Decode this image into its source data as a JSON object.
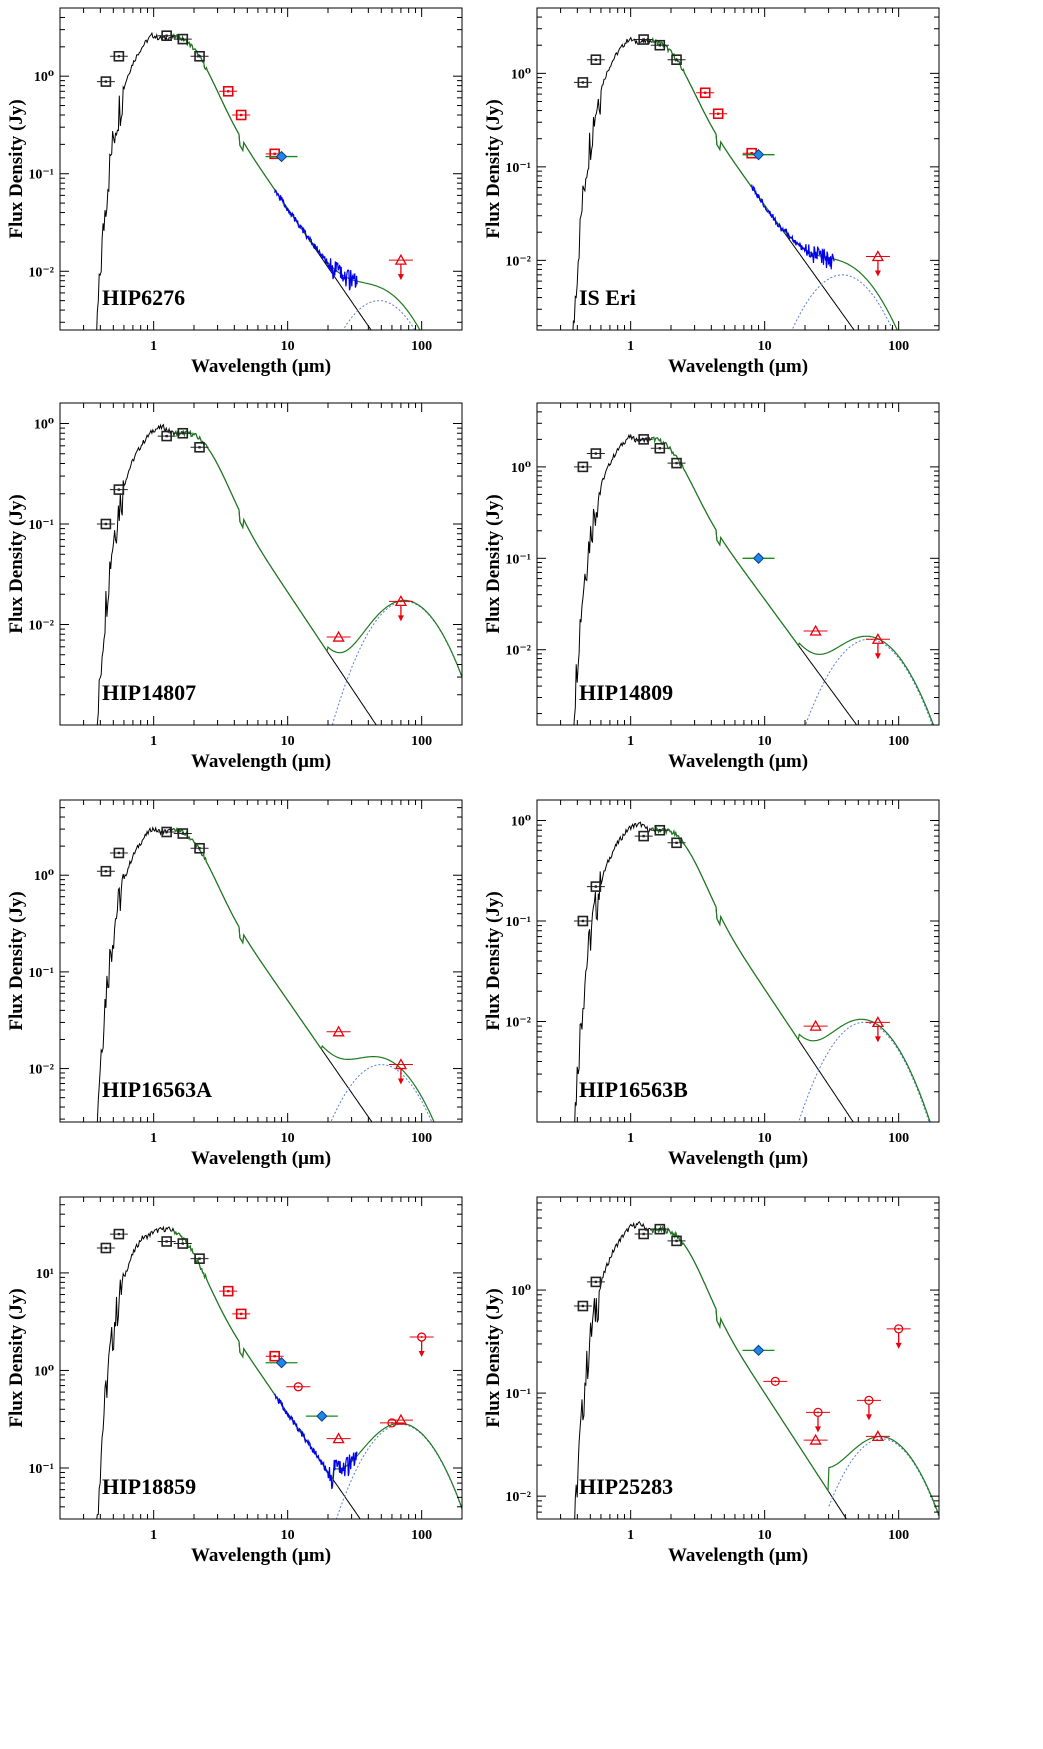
{
  "figure": {
    "panel_count": 8,
    "colors": {
      "photosphere": "#000000",
      "total_model": "#1f7a1f",
      "disk_model": "#5b7fd6",
      "irs_spectrum": "#0000ee",
      "optical_nir_photometry": "#222222",
      "irac_mips_photometry": "#e8000b",
      "akari_wise_photometry": "#1a8a1a",
      "diamond_marker": "#1e88e5"
    }
  },
  "chart_data": [
    {
      "panel": "HIP6276",
      "type": "scatter",
      "xlabel": "Wavelength (μm)",
      "ylabel": "Flux Density (Jy)",
      "xscale": "log",
      "yscale": "log",
      "xlim": [
        0.2,
        200
      ],
      "ylim": [
        0.0025,
        5
      ],
      "xticks": [
        "1",
        "10",
        "100"
      ],
      "yticks": [
        "10⁰",
        "10⁻¹",
        "10⁻²"
      ],
      "label_position": "bottom-left",
      "photosphere_peak": {
        "x": 1.3,
        "y": 2.6
      },
      "disk": {
        "peak_x": 48,
        "peak_y": 0.005,
        "cut_x": 12
      },
      "irs_spectrum": {
        "from": 8,
        "to": 33
      },
      "photometry": [
        {
          "x": 0.44,
          "y": 0.88,
          "style": "square"
        },
        {
          "x": 0.55,
          "y": 1.6,
          "style": "square"
        },
        {
          "x": 1.25,
          "y": 2.6,
          "style": "square"
        },
        {
          "x": 1.65,
          "y": 2.4,
          "style": "square"
        },
        {
          "x": 2.2,
          "y": 1.6,
          "style": "square"
        },
        {
          "x": 3.6,
          "y": 0.7,
          "style": "square-red"
        },
        {
          "x": 4.5,
          "y": 0.4,
          "style": "square-red"
        },
        {
          "x": 8.0,
          "y": 0.16,
          "style": "square-red"
        },
        {
          "x": 9.0,
          "y": 0.15,
          "style": "diamond"
        },
        {
          "x": 70,
          "y": 0.013,
          "style": "triangle-upper"
        }
      ]
    },
    {
      "panel": "IS Eri",
      "type": "scatter",
      "xlabel": "Wavelength (μm)",
      "ylabel": "Flux Density (Jy)",
      "xscale": "log",
      "yscale": "log",
      "xlim": [
        0.2,
        200
      ],
      "ylim": [
        0.0018,
        5
      ],
      "xticks": [
        "1",
        "10",
        "100"
      ],
      "yticks": [
        "10⁰",
        "10⁻¹",
        "10⁻²"
      ],
      "label_position": "bottom-left",
      "photosphere_peak": {
        "x": 1.3,
        "y": 2.3
      },
      "disk": {
        "peak_x": 38,
        "peak_y": 0.007,
        "cut_x": 14
      },
      "irs_spectrum": {
        "from": 8,
        "to": 33
      },
      "photometry": [
        {
          "x": 0.44,
          "y": 0.8,
          "style": "square"
        },
        {
          "x": 0.55,
          "y": 1.4,
          "style": "square"
        },
        {
          "x": 1.25,
          "y": 2.3,
          "style": "square"
        },
        {
          "x": 1.65,
          "y": 2.0,
          "style": "square"
        },
        {
          "x": 2.2,
          "y": 1.4,
          "style": "square"
        },
        {
          "x": 3.6,
          "y": 0.62,
          "style": "square-red"
        },
        {
          "x": 4.5,
          "y": 0.37,
          "style": "square-red"
        },
        {
          "x": 8.0,
          "y": 0.14,
          "style": "square-red"
        },
        {
          "x": 9.0,
          "y": 0.135,
          "style": "diamond"
        },
        {
          "x": 70,
          "y": 0.011,
          "style": "triangle-upper"
        }
      ]
    },
    {
      "panel": "HIP14807",
      "type": "scatter",
      "xlabel": "Wavelength (μm)",
      "ylabel": "Flux Density (Jy)",
      "xscale": "log",
      "yscale": "log",
      "xlim": [
        0.2,
        200
      ],
      "ylim": [
        0.001,
        1.6
      ],
      "xticks": [
        "1",
        "10",
        "100"
      ],
      "yticks": [
        "10⁰",
        "10⁻¹",
        "10⁻²"
      ],
      "label_position": "bottom-left",
      "photosphere_peak": {
        "x": 1.6,
        "y": 0.82
      },
      "disk": {
        "peak_x": 75,
        "peak_y": 0.017,
        "cut_x": 20
      },
      "irs_spectrum": null,
      "photometry": [
        {
          "x": 0.44,
          "y": 0.1,
          "style": "square"
        },
        {
          "x": 0.55,
          "y": 0.22,
          "style": "square"
        },
        {
          "x": 1.25,
          "y": 0.75,
          "style": "square"
        },
        {
          "x": 1.65,
          "y": 0.8,
          "style": "square"
        },
        {
          "x": 2.2,
          "y": 0.58,
          "style": "square"
        },
        {
          "x": 24,
          "y": 0.0075,
          "style": "triangle"
        },
        {
          "x": 70,
          "y": 0.017,
          "style": "triangle-upper"
        }
      ]
    },
    {
      "panel": "HIP14809",
      "type": "scatter",
      "xlabel": "Wavelength (μm)",
      "ylabel": "Flux Density (Jy)",
      "xscale": "log",
      "yscale": "log",
      "xlim": [
        0.2,
        200
      ],
      "ylim": [
        0.0015,
        5
      ],
      "xticks": [
        "1",
        "10",
        "100"
      ],
      "yticks": [
        "10⁰",
        "10⁻¹",
        "10⁻²"
      ],
      "label_position": "bottom-left",
      "photosphere_peak": {
        "x": 1.3,
        "y": 2.1
      },
      "disk": {
        "peak_x": 60,
        "peak_y": 0.013,
        "cut_x": 18
      },
      "irs_spectrum": null,
      "photometry": [
        {
          "x": 0.44,
          "y": 1.0,
          "style": "square"
        },
        {
          "x": 0.55,
          "y": 1.4,
          "style": "square"
        },
        {
          "x": 1.25,
          "y": 2.0,
          "style": "square"
        },
        {
          "x": 1.65,
          "y": 1.6,
          "style": "square"
        },
        {
          "x": 2.2,
          "y": 1.1,
          "style": "square"
        },
        {
          "x": 9.0,
          "y": 0.1,
          "style": "diamond"
        },
        {
          "x": 24,
          "y": 0.016,
          "style": "triangle"
        },
        {
          "x": 70,
          "y": 0.013,
          "style": "triangle-upper"
        }
      ]
    },
    {
      "panel": "HIP16563A",
      "type": "scatter",
      "xlabel": "Wavelength (μm)",
      "ylabel": "Flux Density (Jy)",
      "xscale": "log",
      "yscale": "log",
      "xlim": [
        0.2,
        200
      ],
      "ylim": [
        0.0028,
        6
      ],
      "xticks": [
        "1",
        "10",
        "100"
      ],
      "yticks": [
        "10⁰",
        "10⁻¹",
        "10⁻²"
      ],
      "label_position": "bottom-left",
      "photosphere_peak": {
        "x": 1.3,
        "y": 3.0
      },
      "disk": {
        "peak_x": 50,
        "peak_y": 0.011,
        "cut_x": 18
      },
      "irs_spectrum": null,
      "photometry": [
        {
          "x": 0.44,
          "y": 1.1,
          "style": "square"
        },
        {
          "x": 0.55,
          "y": 1.7,
          "style": "square"
        },
        {
          "x": 1.25,
          "y": 2.8,
          "style": "square"
        },
        {
          "x": 1.65,
          "y": 2.7,
          "style": "square"
        },
        {
          "x": 2.2,
          "y": 1.9,
          "style": "square"
        },
        {
          "x": 24,
          "y": 0.024,
          "style": "triangle"
        },
        {
          "x": 70,
          "y": 0.011,
          "style": "triangle-upper"
        }
      ]
    },
    {
      "panel": "HIP16563B",
      "type": "scatter",
      "xlabel": "Wavelength (μm)",
      "ylabel": "Flux Density (Jy)",
      "xscale": "log",
      "yscale": "log",
      "xlim": [
        0.2,
        200
      ],
      "ylim": [
        0.001,
        1.6
      ],
      "xticks": [
        "1",
        "10",
        "100"
      ],
      "yticks": [
        "10⁰",
        "10⁻¹",
        "10⁻²"
      ],
      "label_position": "bottom-left",
      "photosphere_peak": {
        "x": 1.6,
        "y": 0.82
      },
      "disk": {
        "peak_x": 55,
        "peak_y": 0.0098,
        "cut_x": 18
      },
      "irs_spectrum": null,
      "photometry": [
        {
          "x": 0.44,
          "y": 0.1,
          "style": "square"
        },
        {
          "x": 0.55,
          "y": 0.22,
          "style": "square"
        },
        {
          "x": 1.25,
          "y": 0.7,
          "style": "square"
        },
        {
          "x": 1.65,
          "y": 0.8,
          "style": "square"
        },
        {
          "x": 2.2,
          "y": 0.6,
          "style": "square"
        },
        {
          "x": 24,
          "y": 0.009,
          "style": "triangle"
        },
        {
          "x": 70,
          "y": 0.0098,
          "style": "triangle-upper"
        }
      ]
    },
    {
      "panel": "HIP18859",
      "type": "scatter",
      "xlabel": "Wavelength (μm)",
      "ylabel": "Flux Density (Jy)",
      "xscale": "log",
      "yscale": "log",
      "xlim": [
        0.2,
        200
      ],
      "ylim": [
        0.03,
        60
      ],
      "xticks": [
        "1",
        "10",
        "100"
      ],
      "yticks": [
        "10¹",
        "10⁰",
        "10⁻¹"
      ],
      "label_position": "bottom-left",
      "photosphere_peak": {
        "x": 1.1,
        "y": 30
      },
      "disk": {
        "peak_x": 70,
        "peak_y": 0.28,
        "cut_x": 22
      },
      "irs_spectrum": {
        "from": 8,
        "to": 33
      },
      "photometry": [
        {
          "x": 0.44,
          "y": 18,
          "style": "square"
        },
        {
          "x": 0.55,
          "y": 25,
          "style": "square"
        },
        {
          "x": 1.25,
          "y": 21,
          "style": "square"
        },
        {
          "x": 1.65,
          "y": 20,
          "style": "square"
        },
        {
          "x": 2.2,
          "y": 14,
          "style": "square"
        },
        {
          "x": 3.6,
          "y": 6.5,
          "style": "square-red"
        },
        {
          "x": 4.5,
          "y": 3.8,
          "style": "square-red"
        },
        {
          "x": 8.0,
          "y": 1.4,
          "style": "square-red"
        },
        {
          "x": 9.0,
          "y": 1.2,
          "style": "diamond"
        },
        {
          "x": 12,
          "y": 0.68,
          "style": "circle"
        },
        {
          "x": 18,
          "y": 0.34,
          "style": "diamond"
        },
        {
          "x": 24,
          "y": 0.2,
          "style": "triangle"
        },
        {
          "x": 60,
          "y": 0.29,
          "style": "circle"
        },
        {
          "x": 70,
          "y": 0.31,
          "style": "triangle"
        },
        {
          "x": 100,
          "y": 2.2,
          "style": "circle-upper"
        }
      ]
    },
    {
      "panel": "HIP25283",
      "type": "scatter",
      "xlabel": "Wavelength (μm)",
      "ylabel": "Flux Density (Jy)",
      "xscale": "log",
      "yscale": "log",
      "xlim": [
        0.2,
        200
      ],
      "ylim": [
        0.006,
        8
      ],
      "xticks": [
        "1",
        "10",
        "100"
      ],
      "yticks": [
        "10⁰",
        "10⁻¹",
        "10⁻²"
      ],
      "label_position": "bottom-left",
      "photosphere_peak": {
        "x": 1.6,
        "y": 3.9
      },
      "disk": {
        "peak_x": 75,
        "peak_y": 0.036,
        "cut_x": 30
      },
      "irs_spectrum": null,
      "photometry": [
        {
          "x": 0.44,
          "y": 0.7,
          "style": "square"
        },
        {
          "x": 0.55,
          "y": 1.2,
          "style": "square"
        },
        {
          "x": 1.25,
          "y": 3.5,
          "style": "square"
        },
        {
          "x": 1.65,
          "y": 3.9,
          "style": "square"
        },
        {
          "x": 2.2,
          "y": 3.0,
          "style": "square"
        },
        {
          "x": 9.0,
          "y": 0.26,
          "style": "diamond"
        },
        {
          "x": 12,
          "y": 0.13,
          "style": "circle"
        },
        {
          "x": 24,
          "y": 0.035,
          "style": "triangle"
        },
        {
          "x": 25,
          "y": 0.065,
          "style": "circle-upper"
        },
        {
          "x": 60,
          "y": 0.085,
          "style": "circle-upper"
        },
        {
          "x": 70,
          "y": 0.038,
          "style": "triangle"
        },
        {
          "x": 100,
          "y": 0.42,
          "style": "circle-upper"
        }
      ]
    }
  ]
}
